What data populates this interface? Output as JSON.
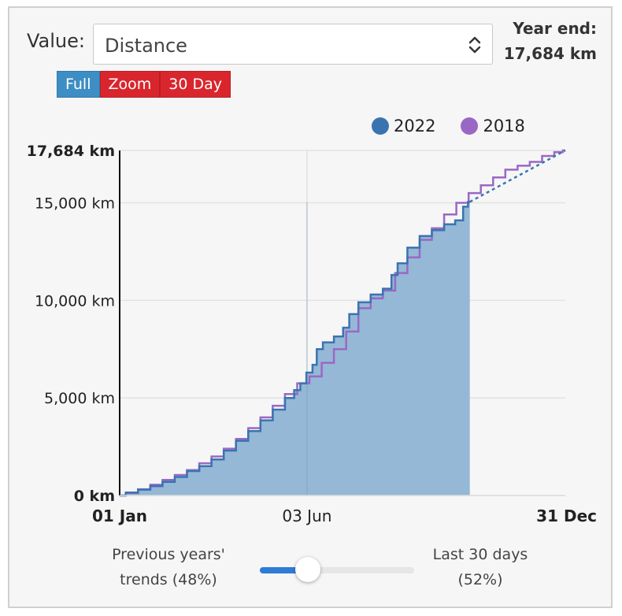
{
  "controls": {
    "value_label": "Value:",
    "value_selected": "Distance",
    "buttons": [
      "Full",
      "Zoom",
      "30 Day"
    ],
    "active_button": "Full"
  },
  "year_end": {
    "label": "Year end:",
    "value": "17,684 km"
  },
  "slider": {
    "left_label_line1": "Previous years'",
    "left_label_line2": "trends (48%)",
    "right_label_line1": "Last 30 days",
    "right_label_line2": "(52%)",
    "value_fraction": 0.48
  },
  "colors": {
    "series_2022": "#3a74b0",
    "series_2018": "#9a68c4",
    "area_fill": "#94b8d6",
    "button_active": "#3d8ec4",
    "button_inactive": "#d9262d"
  },
  "chart_data": {
    "type": "line",
    "y_unit": "km",
    "ylim": [
      0,
      17684
    ],
    "y_ticks": [
      {
        "value": 0,
        "label": "0 km",
        "bold": true
      },
      {
        "value": 5000,
        "label": "5,000 km",
        "bold": false
      },
      {
        "value": 10000,
        "label": "10,000 km",
        "bold": false
      },
      {
        "value": 15000,
        "label": "15,000 km",
        "bold": false
      },
      {
        "value": 17684,
        "label": "17,684 km",
        "bold": true
      }
    ],
    "xlim": [
      "01 Jan",
      "31 Dec"
    ],
    "x_ticks": [
      {
        "date": "01 Jan",
        "label": "01 Jan",
        "bold": true
      },
      {
        "date": "03 Jun",
        "label": "03 Jun",
        "bold": false
      },
      {
        "date": "31 Dec",
        "label": "31 Dec",
        "bold": true
      }
    ],
    "grid": true,
    "legend_position": "top-right",
    "series": [
      {
        "name": "2022",
        "style": "step-area",
        "points": [
          [
            "01 Jan",
            0
          ],
          [
            "11 Jan",
            150
          ],
          [
            "21 Jan",
            300
          ],
          [
            "31 Jan",
            480
          ],
          [
            "10 Feb",
            700
          ],
          [
            "20 Feb",
            950
          ],
          [
            "02 Mar",
            1250
          ],
          [
            "12 Mar",
            1500
          ],
          [
            "22 Mar",
            1850
          ],
          [
            "01 Apr",
            2300
          ],
          [
            "11 Apr",
            2800
          ],
          [
            "21 Apr",
            3300
          ],
          [
            "01 May",
            3850
          ],
          [
            "11 May",
            4400
          ],
          [
            "21 May",
            5000
          ],
          [
            "26 May",
            5400
          ],
          [
            "31 May",
            5750
          ],
          [
            "05 Jun",
            6300
          ],
          [
            "10 Jun",
            6700
          ],
          [
            "12 Jun",
            7500
          ],
          [
            "20 Jun",
            7850
          ],
          [
            "30 Jun",
            8150
          ],
          [
            "05 Jul",
            8600
          ],
          [
            "10 Jul",
            9300
          ],
          [
            "20 Jul",
            9900
          ],
          [
            "30 Jul",
            10300
          ],
          [
            "09 Aug",
            10600
          ],
          [
            "13 Aug",
            11300
          ],
          [
            "19 Aug",
            11900
          ],
          [
            "29 Aug",
            12700
          ],
          [
            "08 Sep",
            13300
          ],
          [
            "18 Sep",
            13600
          ],
          [
            "28 Sep",
            13900
          ],
          [
            "06 Oct",
            14100
          ],
          [
            "11 Oct",
            14800
          ],
          [
            "14 Oct",
            15050
          ]
        ],
        "projection": [
          [
            "14 Oct",
            15050
          ],
          [
            "31 Dec",
            17684
          ]
        ]
      },
      {
        "name": "2018",
        "style": "step-line",
        "points": [
          [
            "01 Jan",
            0
          ],
          [
            "11 Jan",
            120
          ],
          [
            "21 Jan",
            320
          ],
          [
            "31 Jan",
            550
          ],
          [
            "10 Feb",
            800
          ],
          [
            "20 Feb",
            1050
          ],
          [
            "02 Mar",
            1300
          ],
          [
            "12 Mar",
            1650
          ],
          [
            "22 Mar",
            2000
          ],
          [
            "01 Apr",
            2400
          ],
          [
            "11 Apr",
            2900
          ],
          [
            "21 Apr",
            3450
          ],
          [
            "01 May",
            4000
          ],
          [
            "11 May",
            4600
          ],
          [
            "21 May",
            5200
          ],
          [
            "31 May",
            5750
          ],
          [
            "10 Jun",
            6100
          ],
          [
            "20 Jun",
            6800
          ],
          [
            "30 Jun",
            7500
          ],
          [
            "10 Jul",
            8400
          ],
          [
            "20 Jul",
            9600
          ],
          [
            "30 Jul",
            10100
          ],
          [
            "09 Aug",
            10500
          ],
          [
            "19 Aug",
            11400
          ],
          [
            "29 Aug",
            12200
          ],
          [
            "08 Sep",
            13100
          ],
          [
            "18 Sep",
            13700
          ],
          [
            "28 Sep",
            14400
          ],
          [
            "08 Oct",
            15000
          ],
          [
            "18 Oct",
            15500
          ],
          [
            "28 Oct",
            15900
          ],
          [
            "07 Nov",
            16300
          ],
          [
            "17 Nov",
            16700
          ],
          [
            "27 Nov",
            16900
          ],
          [
            "07 Dec",
            17100
          ],
          [
            "17 Dec",
            17400
          ],
          [
            "27 Dec",
            17600
          ],
          [
            "31 Dec",
            17684
          ]
        ]
      }
    ]
  }
}
